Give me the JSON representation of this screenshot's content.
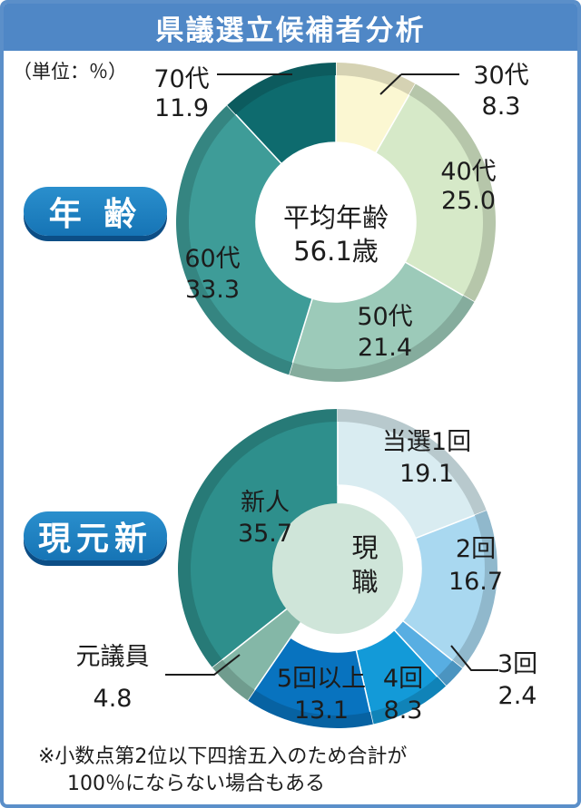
{
  "title": "県議選立候補者分析",
  "unit_label": "（単位：％）",
  "colors": {
    "title_bar": "#4f87c6",
    "pill": "#1a7bbd"
  },
  "chart_data": [
    {
      "type": "pie",
      "section_label": "年 齢",
      "center_text": [
        "平均年齢",
        "56.1歳"
      ],
      "categories": [
        "30代",
        "40代",
        "50代",
        "60代",
        "70代"
      ],
      "values": [
        8.3,
        25.0,
        21.4,
        33.3,
        11.9
      ],
      "value_labels": [
        "8.3",
        "25.0",
        "21.4",
        "33.3",
        "11.9"
      ],
      "colors": [
        "#fbf7d2",
        "#d6e9c8",
        "#9ccab9",
        "#3e9c98",
        "#0e6b6e"
      ]
    },
    {
      "type": "pie",
      "section_label": "現元新",
      "center_text": [
        "現",
        "職"
      ],
      "categories": [
        "新人",
        "当選1回",
        "2回",
        "3回",
        "4回",
        "5回以上",
        "元議員"
      ],
      "values": [
        35.7,
        19.1,
        16.7,
        2.4,
        8.3,
        13.1,
        4.8
      ],
      "value_labels": [
        "35.7",
        "19.1",
        "16.7",
        "2.4",
        "8.3",
        "13.1",
        "4.8"
      ],
      "colors": [
        "#2e8f8c",
        "#d9ecf1",
        "#a9d8f0",
        "#58aee2",
        "#139ad8",
        "#0873bf",
        "#84b7a7"
      ]
    }
  ],
  "footnote": [
    "※小数点第2位以下四捨五入のため合計が",
    "100％にならない場合もある"
  ]
}
